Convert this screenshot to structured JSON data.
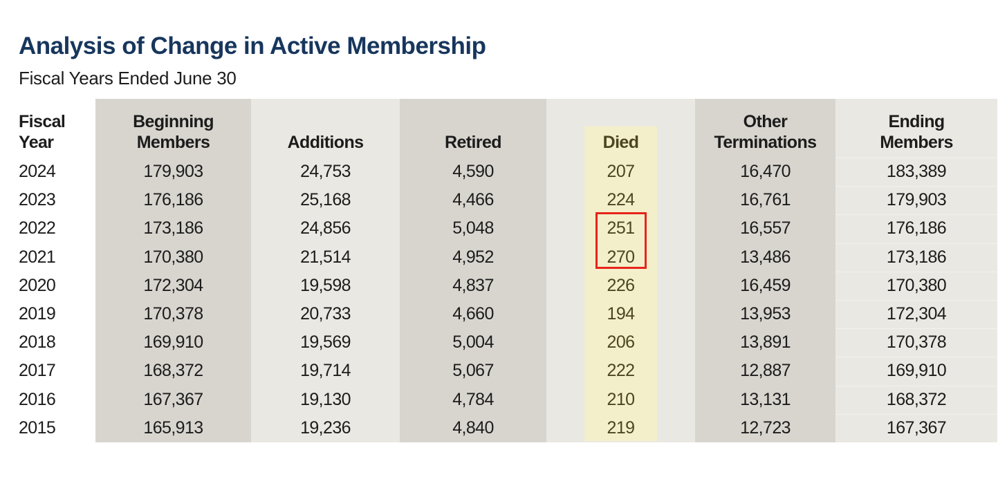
{
  "page": {
    "title": "Analysis of Change in Active Membership",
    "subtitle": "Fiscal Years Ended June 30"
  },
  "colors": {
    "title_navy": "#17365d",
    "column_gray": "#d8d5cf",
    "column_light": "#eae8e2",
    "died_highlight_yellow": "#f3efca",
    "died_text_olive": "#4b461f",
    "annotation_red": "#e8231b",
    "body_text": "#1c1c1c"
  },
  "table": {
    "columns": [
      {
        "key": "fiscal_year",
        "label_line1": "Fiscal",
        "label_line2": "Year"
      },
      {
        "key": "beginning_members",
        "label_line1": "Beginning",
        "label_line2": "Members"
      },
      {
        "key": "additions",
        "label_line1": "",
        "label_line2": "Additions"
      },
      {
        "key": "retired",
        "label_line1": "",
        "label_line2": "Retired"
      },
      {
        "key": "died",
        "label_line1": "",
        "label_line2": "Died"
      },
      {
        "key": "other_terminations",
        "label_line1": "Other",
        "label_line2": "Terminations"
      },
      {
        "key": "ending_members",
        "label_line1": "Ending",
        "label_line2": "Members"
      }
    ],
    "rows": [
      [
        "2024",
        "179,903",
        "24,753",
        "4,590",
        "207",
        "16,470",
        "183,389"
      ],
      [
        "2023",
        "176,186",
        "25,168",
        "4,466",
        "224",
        "16,761",
        "179,903"
      ],
      [
        "2022",
        "173,186",
        "24,856",
        "5,048",
        "251",
        "16,557",
        "176,186"
      ],
      [
        "2021",
        "170,380",
        "21,514",
        "4,952",
        "270",
        "13,486",
        "173,186"
      ],
      [
        "2020",
        "172,304",
        "19,598",
        "4,837",
        "226",
        "16,459",
        "170,380"
      ],
      [
        "2019",
        "170,378",
        "20,733",
        "4,660",
        "194",
        "13,953",
        "172,304"
      ],
      [
        "2018",
        "169,910",
        "19,569",
        "5,004",
        "206",
        "13,891",
        "170,378"
      ],
      [
        "2017",
        "168,372",
        "19,714",
        "5,067",
        "222",
        "12,887",
        "169,910"
      ],
      [
        "2016",
        "167,367",
        "19,130",
        "4,784",
        "210",
        "13,131",
        "168,372"
      ],
      [
        "2015",
        "165,913",
        "19,236",
        "4,840",
        "219",
        "12,723",
        "167,367"
      ]
    ],
    "annotations": {
      "highlighted_column": "Died",
      "boxed_values": [
        "251",
        "270"
      ],
      "boxed_fiscal_years": [
        "2022",
        "2021"
      ]
    }
  }
}
